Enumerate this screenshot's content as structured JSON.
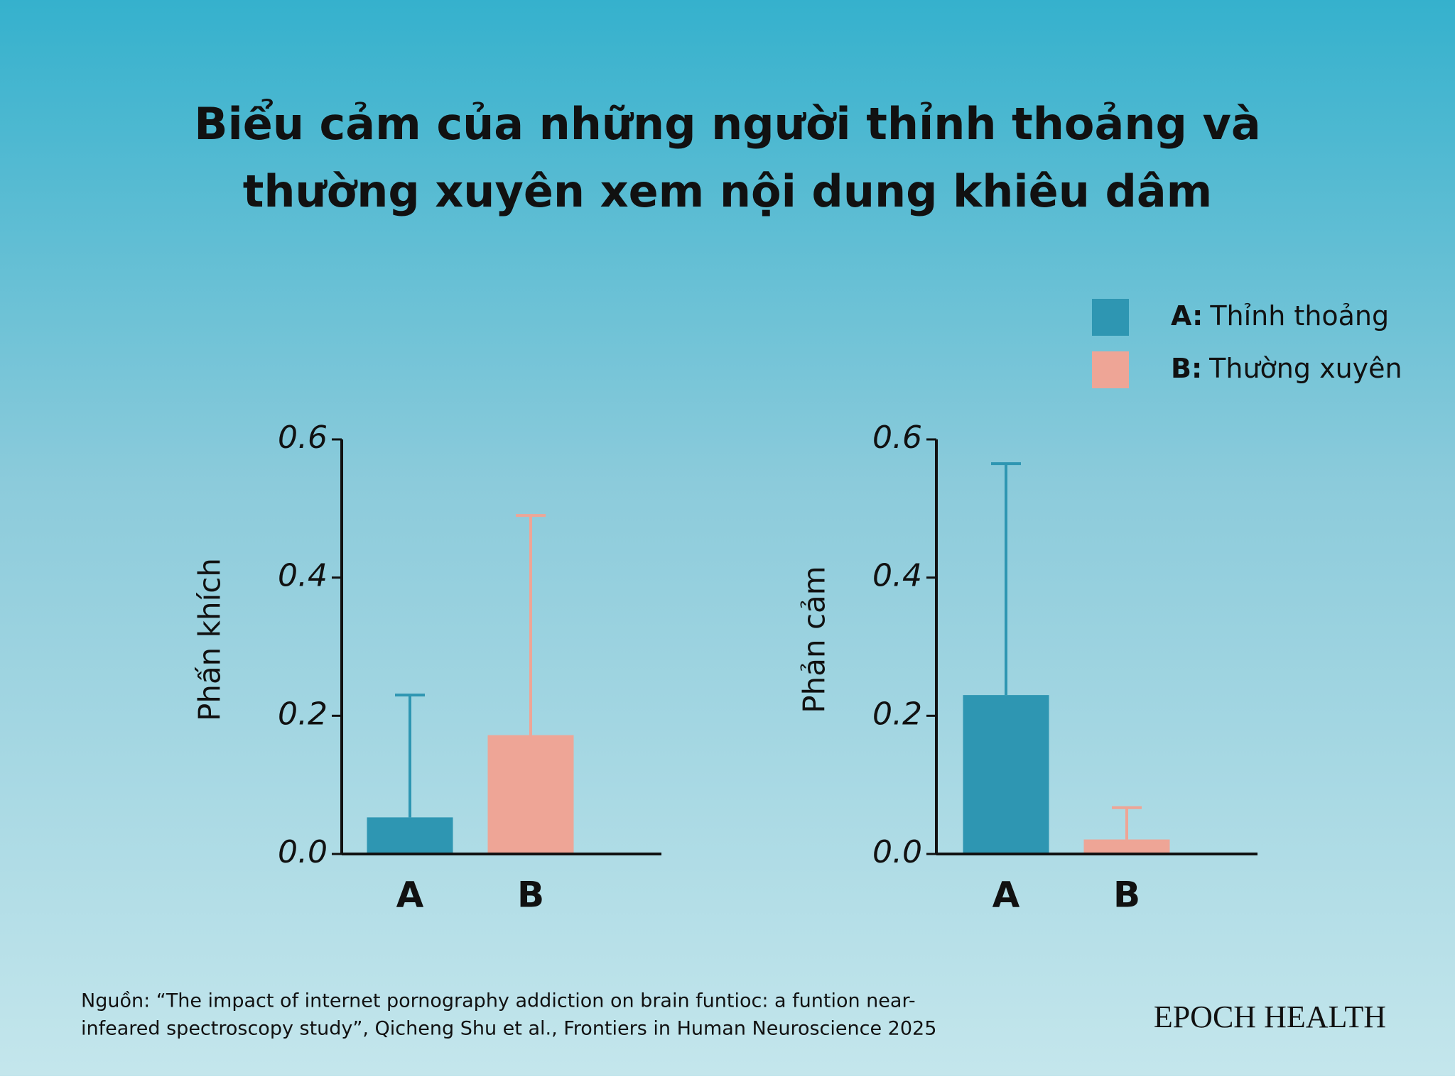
{
  "title": [
    "Biểu cảm của những người thỉnh thoảng và",
    "thường xuyên xem nội dung khiêu dâm"
  ],
  "legend": [
    {
      "key": "A:",
      "label": "Thỉnh thoảng",
      "color": "#2e96b2"
    },
    {
      "key": "B:",
      "label": "Thường xuyên",
      "color": "#eea596"
    }
  ],
  "chart_data": [
    {
      "type": "bar",
      "y_label": "Phấn khích",
      "categories": [
        "A",
        "B"
      ],
      "values": [
        0.053,
        0.172
      ],
      "errors": [
        0.177,
        0.318
      ],
      "colors": [
        "#2e96b2",
        "#eea596"
      ],
      "ylim": [
        0,
        0.6
      ],
      "yticks": [
        {
          "value": 0,
          "label": "0.0"
        },
        0.2,
        0.4,
        0.6
      ]
    },
    {
      "type": "bar",
      "y_label": "Phản cảm",
      "categories": [
        "A",
        "B"
      ],
      "values": [
        0.23,
        0.021
      ],
      "errors": [
        0.335,
        0.046
      ],
      "colors": [
        "#2e96b2",
        "#eea596"
      ],
      "ylim": [
        0,
        0.6
      ],
      "yticks": [
        {
          "value": 0,
          "label": "0.0"
        },
        0.2,
        0.4,
        0.6
      ]
    }
  ],
  "source": [
    "Nguồn: “The impact of internet pornography addiction on brain funtioc: a funtion near-",
    "infeared spectroscopy study”, Qicheng Shu et al., Frontiers in Human Neuroscience 2025"
  ],
  "brand": "EPOCH HEALTH"
}
